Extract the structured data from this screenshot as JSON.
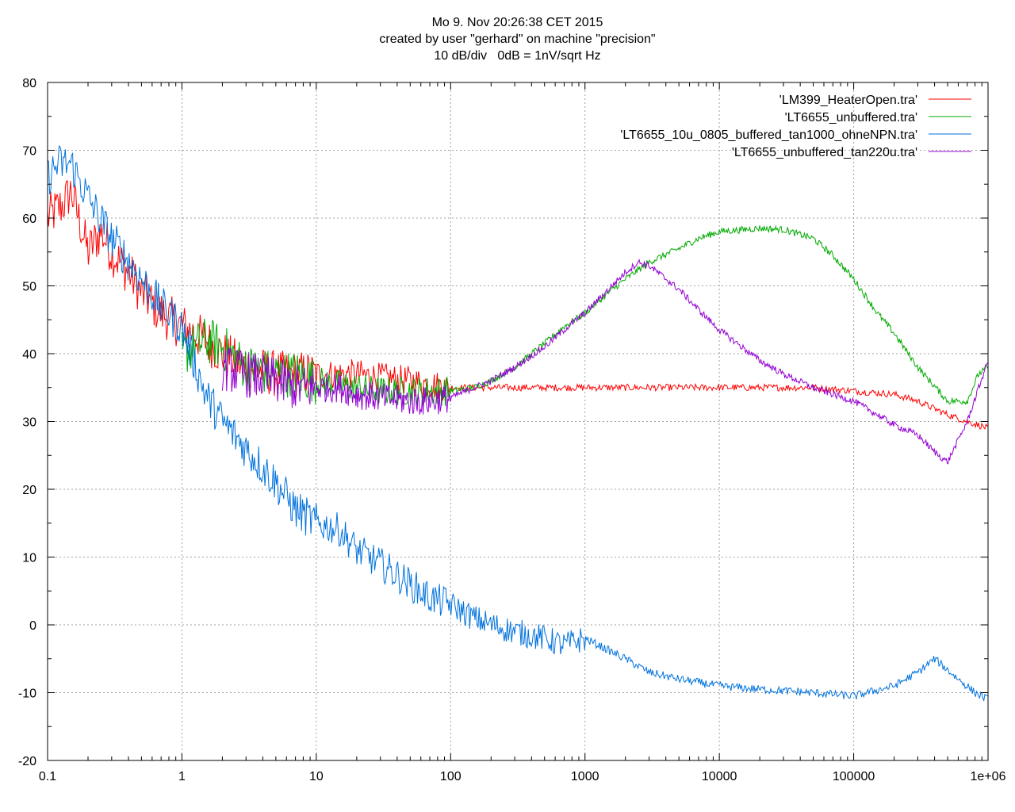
{
  "title_lines": [
    "Mo 9. Nov 20:26:38 CET 2015",
    "created by user \"gerhard\" on machine \"precision\"",
    "10 dB/div   0dB = 1nV/sqrt Hz"
  ],
  "chart_data": {
    "type": "line",
    "title": "Mo 9. Nov 20:26:38 CET 2015",
    "subtitle": "created by user \"gerhard\" on machine \"precision\" / 10 dB/div   0dB = 1nV/sqrt Hz",
    "xlabel": "",
    "ylabel": "",
    "xscale": "log",
    "xlim": [
      0.1,
      1000000
    ],
    "ylim": [
      -20,
      80
    ],
    "grid": true,
    "legend_position": "top-right",
    "x_tick_labels": [
      "0.1",
      "1",
      "10",
      "100",
      "1000",
      "10000",
      "100000",
      "1e+06"
    ],
    "x_ticks": [
      0.1,
      1,
      10,
      100,
      1000,
      10000,
      100000,
      1000000
    ],
    "y_tick_labels": [
      "-20",
      "-10",
      "0",
      "10",
      "20",
      "30",
      "40",
      "50",
      "60",
      "70",
      "80"
    ],
    "y_ticks": [
      -20,
      -10,
      0,
      10,
      20,
      30,
      40,
      50,
      60,
      70,
      80
    ],
    "series": [
      {
        "name": "'LM399_HeaterOpen.tra'",
        "color": "#ff0000",
        "x": [
          0.1,
          0.13,
          0.15,
          0.2,
          0.25,
          0.3,
          0.4,
          0.5,
          0.7,
          1,
          1.5,
          2,
          3,
          5,
          7,
          10,
          15,
          20,
          30,
          50,
          70,
          100,
          150,
          200,
          300,
          500,
          700,
          1000,
          2000,
          3000,
          5000,
          10000,
          20000,
          50000,
          100000,
          200000,
          300000,
          500000,
          700000,
          1000000
        ],
        "y": [
          60,
          62,
          64,
          55,
          58,
          55,
          52,
          49,
          46,
          44,
          42,
          40,
          38,
          37,
          37,
          37,
          37,
          37,
          36.5,
          36,
          35.5,
          35,
          35,
          35,
          35,
          35,
          35,
          35,
          35,
          35,
          35,
          35,
          35,
          35,
          34.5,
          34,
          33,
          31,
          30,
          29
        ]
      },
      {
        "name": "'LT6655_unbuffered.tra'",
        "color": "#00aa00",
        "x": [
          1,
          1.5,
          2,
          3,
          5,
          7,
          10,
          20,
          30,
          50,
          70,
          100,
          150,
          200,
          300,
          500,
          700,
          1000,
          1500,
          2000,
          3000,
          5000,
          7000,
          10000,
          20000,
          30000,
          50000,
          70000,
          100000,
          150000,
          200000,
          300000,
          500000,
          700000,
          850000,
          1000000
        ],
        "y": [
          40,
          42,
          41,
          38,
          37,
          37,
          36,
          35,
          34.5,
          34.5,
          34.5,
          34.5,
          35,
          36,
          38,
          41.5,
          44,
          46,
          49,
          51,
          53.5,
          55.5,
          57,
          58,
          58.5,
          58.3,
          57,
          54.5,
          51,
          46,
          43,
          38,
          33,
          33,
          37,
          38
        ]
      },
      {
        "name": "'LT6655_10u_0805_buffered_tan1000_ohneNPN.tra'",
        "color": "#0072dd",
        "x": [
          0.1,
          0.12,
          0.15,
          0.2,
          0.3,
          0.5,
          0.7,
          1,
          1.5,
          2,
          3,
          5,
          7,
          10,
          15,
          20,
          30,
          50,
          70,
          100,
          150,
          200,
          300,
          500,
          700,
          1000,
          2000,
          3000,
          5000,
          10000,
          20000,
          50000,
          100000,
          200000,
          300000,
          400000,
          600000,
          800000,
          1000000
        ],
        "y": [
          66,
          68,
          68,
          63,
          57,
          51,
          47,
          44,
          34,
          30,
          26,
          21,
          17,
          15,
          14,
          11,
          9,
          6,
          4,
          3,
          1,
          0,
          -1,
          -2,
          -3,
          -2,
          -5,
          -7,
          -8,
          -9,
          -9.5,
          -10,
          -10.5,
          -9,
          -7,
          -5,
          -8,
          -10,
          -11
        ]
      },
      {
        "name": "'LT6655_unbuffered_tan220u.tra'",
        "color": "#9400d3",
        "x": [
          2,
          3,
          5,
          7,
          10,
          15,
          20,
          30,
          50,
          70,
          100,
          150,
          200,
          300,
          500,
          700,
          1000,
          1500,
          2000,
          2500,
          3000,
          5000,
          7000,
          10000,
          20000,
          30000,
          50000,
          70000,
          100000,
          150000,
          200000,
          300000,
          400000,
          500000,
          700000,
          1000000
        ],
        "y": [
          38,
          37,
          36,
          35,
          35,
          35,
          34,
          33.5,
          33,
          33,
          33.5,
          35,
          36,
          38,
          41,
          43.5,
          46,
          49.5,
          52,
          53.5,
          53,
          49.5,
          46.5,
          43.5,
          39,
          37,
          35,
          34,
          33,
          31,
          29.5,
          28,
          25.5,
          24,
          30,
          39
        ]
      }
    ]
  }
}
